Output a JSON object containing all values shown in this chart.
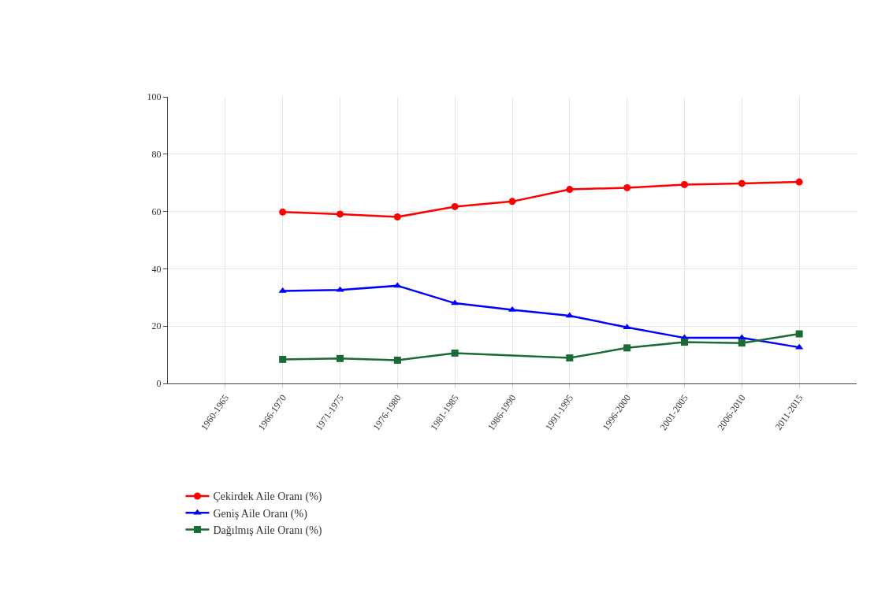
{
  "chart_data": {
    "type": "line",
    "categories": [
      "1960-1965",
      "1966-1970",
      "1971-1975",
      "1976-1980",
      "1981-1985",
      "1986-1990",
      "1991-1995",
      "1996-2000",
      "2001-2005",
      "2006-2010",
      "2011-2015"
    ],
    "series": [
      {
        "name": "Çekirdek Aile Oranı (%)",
        "color": "#ff0000",
        "marker": "circle",
        "values": [
          null,
          59.8,
          59.1,
          58.1,
          61.7,
          63.5,
          67.7,
          68.3,
          69.4,
          69.8,
          70.3
        ]
      },
      {
        "name": "Geniş Aile Oranı (%)",
        "color": "#0000ff",
        "marker": "triangle",
        "values": [
          null,
          32.3,
          32.6,
          34.1,
          28.0,
          25.7,
          23.6,
          19.6,
          15.9,
          15.9,
          12.6
        ]
      },
      {
        "name": "Dağılmış Aile Oranı (%)",
        "color": "#1a6b35",
        "marker": "square",
        "values": [
          null,
          8.4,
          8.7,
          8.1,
          10.6,
          null,
          8.9,
          12.4,
          14.4,
          14.1,
          17.3
        ]
      }
    ],
    "ylim": [
      0,
      100
    ],
    "yticks": [
      0,
      20,
      40,
      60,
      80,
      100
    ],
    "grid": true,
    "legend": "bottom left",
    "line_style": "solid"
  }
}
